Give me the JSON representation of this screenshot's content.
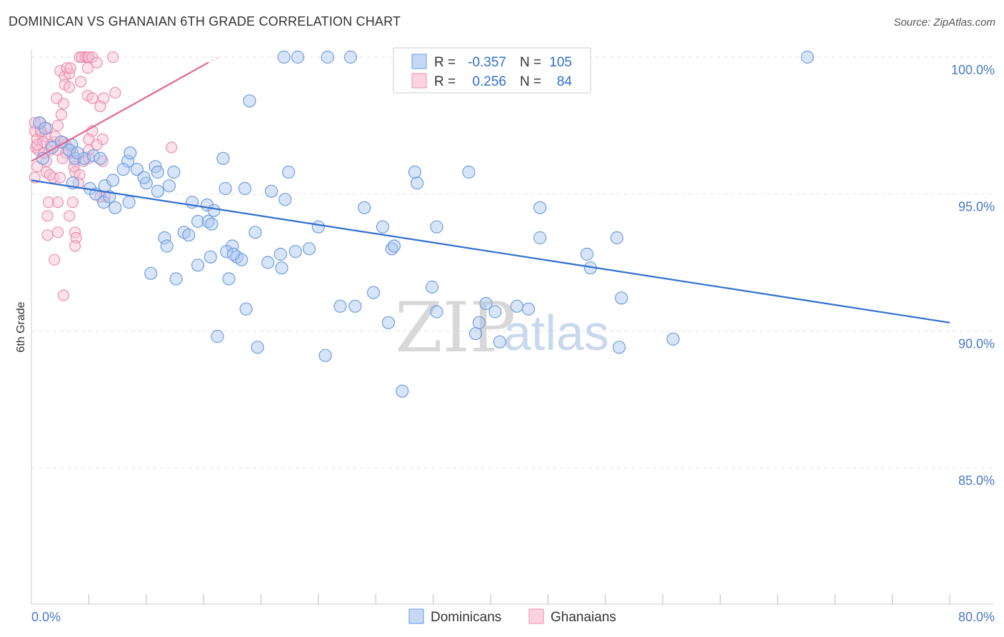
{
  "title": "DOMINICAN VS GHANAIAN 6TH GRADE CORRELATION CHART",
  "source": "Source: ZipAtlas.com",
  "watermark": {
    "zip": "ZIP",
    "atlas": "atlas"
  },
  "legend_box": {
    "rows": [
      {
        "r_label": "R =",
        "r_value": "-0.357",
        "n_label": "N =",
        "n_value": "105",
        "color": "#7aa6e8"
      },
      {
        "r_label": "R =",
        "r_value": "0.256",
        "n_label": "N =",
        "n_value": "84",
        "color": "#f29bb8"
      }
    ]
  },
  "bottom_legend": [
    {
      "label": "Dominicans",
      "color": "#7aa6e8"
    },
    {
      "label": "Ghanaians",
      "color": "#f29bb8"
    }
  ],
  "colors": {
    "blue_fill": "#a9c6f0",
    "blue_stroke": "#6f9de0",
    "blue_line": "#2f6fd0",
    "pink_fill": "#f7bfd2",
    "pink_stroke": "#ec8fb0",
    "pink_line": "#e56590",
    "tick_text": "#4a78c7",
    "grid": "#dddddd"
  },
  "chart_data": {
    "type": "scatter",
    "title": "DOMINICAN VS GHANAIAN 6TH GRADE CORRELATION CHART",
    "xlabel": "",
    "ylabel": "6th Grade",
    "xlim": [
      0,
      80
    ],
    "ylim": [
      80.5,
      100.5
    ],
    "x_tick_labels": [
      "0.0%",
      "80.0%"
    ],
    "y_ticks": [
      85,
      90,
      95,
      100
    ],
    "y_tick_labels": [
      "85.0%",
      "90.0%",
      "95.0%",
      "100.0%"
    ],
    "grid": true,
    "series": [
      {
        "name": "Dominicans",
        "color": "#7aa6e8",
        "trendline": {
          "x": [
            0,
            80
          ],
          "y": [
            95.5,
            90.3
          ]
        },
        "points": [
          [
            22,
            100
          ],
          [
            23.2,
            100
          ],
          [
            25.8,
            100
          ],
          [
            27.8,
            100
          ],
          [
            32.5,
            100
          ],
          [
            67.6,
            100
          ],
          [
            19,
            98.4
          ],
          [
            0.7,
            97.6
          ],
          [
            1.2,
            97.4
          ],
          [
            1.8,
            96.7
          ],
          [
            3.5,
            96.8
          ],
          [
            3.3,
            96.6
          ],
          [
            3.8,
            96.3
          ],
          [
            4.6,
            96.3
          ],
          [
            5.4,
            96.4
          ],
          [
            6.0,
            96.3
          ],
          [
            8.4,
            96.2
          ],
          [
            8.6,
            96.5
          ],
          [
            8.0,
            95.9
          ],
          [
            9.2,
            95.9
          ],
          [
            10.8,
            96.0
          ],
          [
            11.0,
            95.8
          ],
          [
            12.4,
            95.8
          ],
          [
            16.7,
            96.3
          ],
          [
            22.4,
            95.8
          ],
          [
            33.4,
            95.8
          ],
          [
            38.1,
            95.8
          ],
          [
            33.6,
            95.4
          ],
          [
            3.6,
            95.4
          ],
          [
            5.1,
            95.2
          ],
          [
            5.6,
            95.0
          ],
          [
            6.3,
            94.7
          ],
          [
            6.8,
            94.9
          ],
          [
            7.3,
            94.5
          ],
          [
            8.5,
            94.7
          ],
          [
            10.0,
            95.4
          ],
          [
            12.0,
            95.3
          ],
          [
            14.0,
            94.7
          ],
          [
            16.9,
            95.2
          ],
          [
            18.6,
            95.2
          ],
          [
            20.9,
            95.1
          ],
          [
            22.1,
            94.8
          ],
          [
            15.3,
            94.6
          ],
          [
            15.9,
            94.4
          ],
          [
            29.0,
            94.5
          ],
          [
            44.3,
            94.5
          ],
          [
            17.5,
            93.1
          ],
          [
            11.6,
            93.4
          ],
          [
            13.3,
            93.6
          ],
          [
            11.8,
            93.1
          ],
          [
            13.7,
            93.5
          ],
          [
            14.5,
            94.0
          ],
          [
            15.4,
            94.0
          ],
          [
            15.7,
            93.9
          ],
          [
            19.5,
            93.6
          ],
          [
            25.0,
            93.8
          ],
          [
            30.6,
            93.8
          ],
          [
            35.3,
            93.8
          ],
          [
            44.3,
            93.4
          ],
          [
            51.0,
            93.4
          ],
          [
            31.4,
            93.0
          ],
          [
            31.6,
            93.1
          ],
          [
            17.0,
            92.9
          ],
          [
            17.9,
            92.7
          ],
          [
            18.3,
            92.6
          ],
          [
            20.6,
            92.5
          ],
          [
            21.7,
            92.8
          ],
          [
            21.8,
            92.3
          ],
          [
            23.0,
            92.9
          ],
          [
            24.2,
            93.0
          ],
          [
            14.5,
            92.4
          ],
          [
            15.6,
            92.7
          ],
          [
            17.6,
            92.8
          ],
          [
            10.4,
            92.1
          ],
          [
            12.6,
            91.9
          ],
          [
            17.2,
            91.9
          ],
          [
            48.7,
            92.3
          ],
          [
            48.4,
            92.8
          ],
          [
            29.8,
            91.4
          ],
          [
            34.9,
            91.6
          ],
          [
            51.4,
            91.2
          ],
          [
            18.7,
            90.8
          ],
          [
            26.9,
            90.9
          ],
          [
            28.2,
            90.9
          ],
          [
            31.1,
            90.3
          ],
          [
            35.3,
            90.7
          ],
          [
            39.6,
            91.0
          ],
          [
            40.4,
            90.7
          ],
          [
            42.3,
            90.9
          ],
          [
            43.3,
            90.8
          ],
          [
            39.0,
            90.3
          ],
          [
            16.2,
            89.8
          ],
          [
            19.7,
            89.4
          ],
          [
            25.6,
            89.1
          ],
          [
            38.7,
            89.9
          ],
          [
            40.8,
            89.6
          ],
          [
            51.2,
            89.4
          ],
          [
            55.9,
            89.7
          ],
          [
            32.3,
            87.8
          ],
          [
            1.0,
            96.3
          ],
          [
            2.6,
            96.9
          ],
          [
            4.0,
            96.5
          ],
          [
            6.4,
            95.3
          ],
          [
            7.1,
            95.5
          ],
          [
            9.8,
            95.6
          ],
          [
            11.0,
            95.1
          ]
        ]
      },
      {
        "name": "Ghanaians",
        "color": "#f29bb8",
        "trendline": {
          "x": [
            0,
            15.4
          ],
          "y": [
            96.2,
            99.8
          ]
        },
        "points": [
          [
            4.2,
            100
          ],
          [
            4.4,
            100
          ],
          [
            4.7,
            100
          ],
          [
            4.9,
            100
          ],
          [
            5.0,
            100
          ],
          [
            5.3,
            100
          ],
          [
            7.1,
            100
          ],
          [
            5.7,
            99.8
          ],
          [
            2.5,
            99.5
          ],
          [
            2.9,
            99.3
          ],
          [
            3.3,
            99.4
          ],
          [
            3.1,
            99.6
          ],
          [
            3.4,
            99.6
          ],
          [
            2.9,
            99.0
          ],
          [
            3.3,
            98.9
          ],
          [
            4.3,
            99.1
          ],
          [
            2.2,
            98.5
          ],
          [
            2.8,
            98.3
          ],
          [
            4.9,
            98.6
          ],
          [
            5.3,
            98.5
          ],
          [
            6.3,
            98.5
          ],
          [
            6.0,
            98.2
          ],
          [
            7.3,
            98.7
          ],
          [
            2.6,
            97.9
          ],
          [
            0.8,
            97.6
          ],
          [
            1.4,
            97.4
          ],
          [
            2.3,
            97.5
          ],
          [
            0.3,
            97.3
          ],
          [
            0.9,
            97.2
          ],
          [
            1.2,
            97.1
          ],
          [
            5.3,
            97.3
          ],
          [
            0.5,
            97.0
          ],
          [
            1.0,
            96.9
          ],
          [
            2.8,
            96.9
          ],
          [
            3.0,
            96.8
          ],
          [
            5.0,
            97.0
          ],
          [
            6.2,
            97.0
          ],
          [
            12.2,
            96.7
          ],
          [
            0.4,
            96.7
          ],
          [
            0.6,
            96.6
          ],
          [
            1.6,
            96.6
          ],
          [
            2.3,
            96.6
          ],
          [
            3.0,
            96.5
          ],
          [
            3.6,
            96.5
          ],
          [
            5.0,
            96.6
          ],
          [
            5.7,
            96.8
          ],
          [
            1.3,
            96.2
          ],
          [
            2.7,
            96.3
          ],
          [
            3.8,
            96.2
          ],
          [
            4.5,
            96.2
          ],
          [
            5.0,
            96.3
          ],
          [
            0.5,
            96.0
          ],
          [
            1.3,
            95.8
          ],
          [
            1.9,
            95.6
          ],
          [
            3.8,
            95.8
          ],
          [
            4.2,
            95.7
          ],
          [
            1.6,
            95.7
          ],
          [
            0.3,
            95.6
          ],
          [
            2.5,
            95.6
          ],
          [
            4.1,
            95.4
          ],
          [
            6.4,
            94.9
          ],
          [
            6.0,
            94.9
          ],
          [
            1.5,
            94.7
          ],
          [
            2.3,
            94.7
          ],
          [
            3.6,
            94.7
          ],
          [
            1.4,
            94.2
          ],
          [
            3.3,
            94.2
          ],
          [
            1.4,
            93.5
          ],
          [
            2.3,
            93.6
          ],
          [
            3.8,
            93.6
          ],
          [
            3.9,
            93.4
          ],
          [
            3.8,
            93.1
          ],
          [
            2.0,
            92.6
          ],
          [
            2.8,
            91.3
          ],
          [
            0.5,
            96.8
          ],
          [
            0.8,
            97.3
          ],
          [
            1.1,
            96.5
          ],
          [
            2.0,
            96.9
          ],
          [
            6.2,
            96.2
          ],
          [
            1.7,
            96.8
          ],
          [
            3.7,
            96.0
          ],
          [
            2.1,
            97.1
          ],
          [
            0.3,
            97.6
          ],
          [
            4.9,
            99.6
          ]
        ]
      }
    ]
  }
}
